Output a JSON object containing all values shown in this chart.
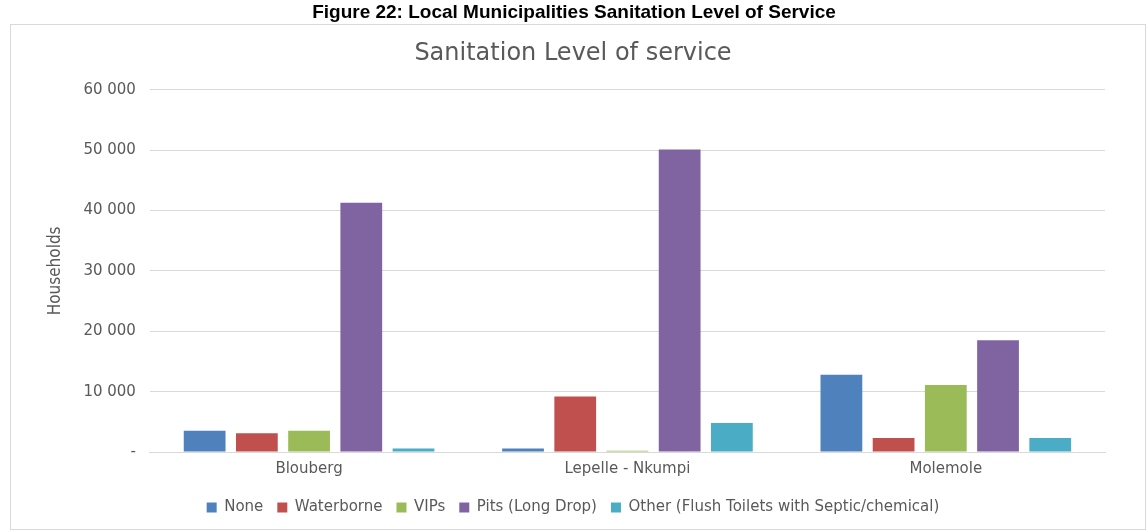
{
  "chart_data": {
    "type": "bar",
    "title": "Figure 22: Local Municipalities Sanitation Level of Service",
    "subtitle": "Sanitation Level of service",
    "ylabel": "Households",
    "categories": [
      "Blouberg",
      "Lepelle - Nkumpi",
      "Molemole"
    ],
    "series": [
      {
        "name": "None",
        "color": "#4f81bd",
        "values": [
          3500,
          600,
          12800
        ]
      },
      {
        "name": "Waterborne",
        "color": "#c0504d",
        "values": [
          3100,
          9200,
          2300
        ]
      },
      {
        "name": "VIPs",
        "color": "#9bbb59",
        "values": [
          3500,
          200,
          11100
        ]
      },
      {
        "name": "Pits (Long Drop)",
        "color": "#8064a2",
        "values": [
          41300,
          50100,
          18500
        ]
      },
      {
        "name": "Other (Flush Toilets with Septic/chemical)",
        "color": "#4bacc6",
        "values": [
          600,
          4800,
          2300
        ]
      }
    ],
    "ylim": [
      0,
      60000
    ],
    "yticks": [
      {
        "value": 0,
        "label": "-"
      },
      {
        "value": 10000,
        "label": "10 000"
      },
      {
        "value": 20000,
        "label": "20 000"
      },
      {
        "value": 30000,
        "label": "30 000"
      },
      {
        "value": 40000,
        "label": "40 000"
      },
      {
        "value": 50000,
        "label": "50 000"
      },
      {
        "value": 60000,
        "label": "60 000"
      }
    ],
    "grid": "y",
    "legend": "bottom"
  }
}
